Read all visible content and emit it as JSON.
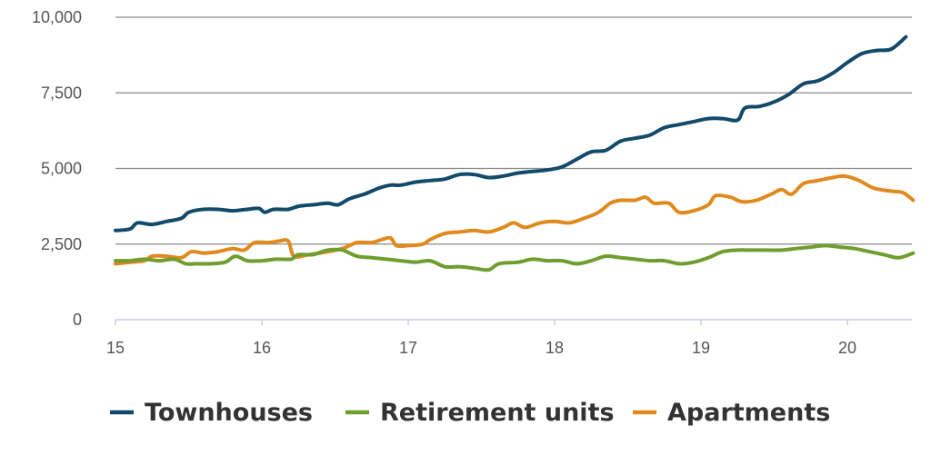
{
  "chart_data": {
    "type": "line",
    "title": "",
    "xlabel": "",
    "ylabel": "",
    "xlim": [
      15,
      20.45
    ],
    "ylim": [
      0,
      10000
    ],
    "x_ticks": [
      15,
      16,
      17,
      18,
      19,
      20
    ],
    "x_tick_labels": [
      "15",
      "16",
      "17",
      "18",
      "19",
      "20"
    ],
    "y_ticks": [
      0,
      2500,
      5000,
      7500,
      10000
    ],
    "y_tick_labels": [
      "0",
      "2,500",
      "5,000",
      "7,500",
      "10,000"
    ],
    "grid": "horizontal",
    "legend": "bottom",
    "series": [
      {
        "name": "Townhouses",
        "color": "#124a6b",
        "points": [
          [
            15.0,
            2950
          ],
          [
            15.1,
            3000
          ],
          [
            15.15,
            3200
          ],
          [
            15.25,
            3150
          ],
          [
            15.35,
            3250
          ],
          [
            15.45,
            3350
          ],
          [
            15.5,
            3550
          ],
          [
            15.6,
            3650
          ],
          [
            15.7,
            3650
          ],
          [
            15.8,
            3600
          ],
          [
            15.9,
            3650
          ],
          [
            15.98,
            3680
          ],
          [
            16.02,
            3550
          ],
          [
            16.08,
            3650
          ],
          [
            16.18,
            3650
          ],
          [
            16.25,
            3750
          ],
          [
            16.35,
            3800
          ],
          [
            16.45,
            3850
          ],
          [
            16.52,
            3800
          ],
          [
            16.6,
            4000
          ],
          [
            16.7,
            4150
          ],
          [
            16.8,
            4350
          ],
          [
            16.88,
            4450
          ],
          [
            16.95,
            4450
          ],
          [
            17.05,
            4550
          ],
          [
            17.15,
            4600
          ],
          [
            17.25,
            4650
          ],
          [
            17.35,
            4800
          ],
          [
            17.45,
            4800
          ],
          [
            17.55,
            4700
          ],
          [
            17.65,
            4750
          ],
          [
            17.75,
            4850
          ],
          [
            17.85,
            4900
          ],
          [
            17.95,
            4950
          ],
          [
            18.05,
            5050
          ],
          [
            18.15,
            5300
          ],
          [
            18.25,
            5550
          ],
          [
            18.35,
            5600
          ],
          [
            18.45,
            5900
          ],
          [
            18.55,
            6000
          ],
          [
            18.65,
            6100
          ],
          [
            18.75,
            6350
          ],
          [
            18.85,
            6450
          ],
          [
            18.95,
            6550
          ],
          [
            19.05,
            6650
          ],
          [
            19.15,
            6650
          ],
          [
            19.25,
            6600
          ],
          [
            19.3,
            7000
          ],
          [
            19.4,
            7050
          ],
          [
            19.5,
            7200
          ],
          [
            19.6,
            7450
          ],
          [
            19.7,
            7800
          ],
          [
            19.8,
            7900
          ],
          [
            19.9,
            8150
          ],
          [
            20.0,
            8500
          ],
          [
            20.1,
            8800
          ],
          [
            20.2,
            8900
          ],
          [
            20.3,
            8950
          ],
          [
            20.4,
            9350
          ]
        ]
      },
      {
        "name": "Retirement units",
        "color": "#6f9e2f",
        "points": [
          [
            15.0,
            1950
          ],
          [
            15.1,
            1950
          ],
          [
            15.2,
            2000
          ],
          [
            15.3,
            1950
          ],
          [
            15.4,
            2000
          ],
          [
            15.48,
            1850
          ],
          [
            15.55,
            1850
          ],
          [
            15.65,
            1850
          ],
          [
            15.75,
            1900
          ],
          [
            15.82,
            2100
          ],
          [
            15.9,
            1950
          ],
          [
            16.0,
            1950
          ],
          [
            16.1,
            2000
          ],
          [
            16.2,
            2000
          ],
          [
            16.25,
            2150
          ],
          [
            16.35,
            2150
          ],
          [
            16.45,
            2300
          ],
          [
            16.55,
            2300
          ],
          [
            16.65,
            2100
          ],
          [
            16.75,
            2050
          ],
          [
            16.85,
            2000
          ],
          [
            16.95,
            1950
          ],
          [
            17.05,
            1900
          ],
          [
            17.15,
            1950
          ],
          [
            17.25,
            1750
          ],
          [
            17.35,
            1750
          ],
          [
            17.45,
            1700
          ],
          [
            17.55,
            1650
          ],
          [
            17.62,
            1850
          ],
          [
            17.75,
            1900
          ],
          [
            17.85,
            2000
          ],
          [
            17.95,
            1950
          ],
          [
            18.05,
            1950
          ],
          [
            18.15,
            1850
          ],
          [
            18.25,
            1950
          ],
          [
            18.35,
            2100
          ],
          [
            18.45,
            2050
          ],
          [
            18.55,
            2000
          ],
          [
            18.65,
            1950
          ],
          [
            18.75,
            1950
          ],
          [
            18.85,
            1850
          ],
          [
            18.95,
            1900
          ],
          [
            19.05,
            2050
          ],
          [
            19.15,
            2250
          ],
          [
            19.25,
            2300
          ],
          [
            19.35,
            2300
          ],
          [
            19.45,
            2300
          ],
          [
            19.55,
            2300
          ],
          [
            19.65,
            2350
          ],
          [
            19.75,
            2400
          ],
          [
            19.85,
            2450
          ],
          [
            19.95,
            2400
          ],
          [
            20.05,
            2350
          ],
          [
            20.15,
            2250
          ],
          [
            20.25,
            2150
          ],
          [
            20.35,
            2050
          ],
          [
            20.45,
            2200
          ]
        ]
      },
      {
        "name": "Apartments",
        "color": "#e08a1e",
        "points": [
          [
            15.0,
            1850
          ],
          [
            15.1,
            1900
          ],
          [
            15.2,
            1950
          ],
          [
            15.25,
            2100
          ],
          [
            15.35,
            2100
          ],
          [
            15.45,
            2050
          ],
          [
            15.52,
            2250
          ],
          [
            15.6,
            2200
          ],
          [
            15.7,
            2250
          ],
          [
            15.8,
            2350
          ],
          [
            15.88,
            2300
          ],
          [
            15.95,
            2550
          ],
          [
            16.05,
            2550
          ],
          [
            16.12,
            2600
          ],
          [
            16.18,
            2600
          ],
          [
            16.22,
            2100
          ],
          [
            16.32,
            2150
          ],
          [
            16.45,
            2250
          ],
          [
            16.55,
            2350
          ],
          [
            16.65,
            2550
          ],
          [
            16.75,
            2550
          ],
          [
            16.82,
            2650
          ],
          [
            16.88,
            2700
          ],
          [
            16.92,
            2450
          ],
          [
            17.0,
            2450
          ],
          [
            17.1,
            2500
          ],
          [
            17.15,
            2650
          ],
          [
            17.25,
            2850
          ],
          [
            17.35,
            2900
          ],
          [
            17.45,
            2950
          ],
          [
            17.55,
            2900
          ],
          [
            17.65,
            3050
          ],
          [
            17.72,
            3200
          ],
          [
            17.8,
            3050
          ],
          [
            17.9,
            3200
          ],
          [
            18.0,
            3250
          ],
          [
            18.1,
            3200
          ],
          [
            18.2,
            3350
          ],
          [
            18.3,
            3550
          ],
          [
            18.38,
            3850
          ],
          [
            18.45,
            3950
          ],
          [
            18.55,
            3950
          ],
          [
            18.62,
            4050
          ],
          [
            18.68,
            3850
          ],
          [
            18.78,
            3850
          ],
          [
            18.85,
            3550
          ],
          [
            18.95,
            3600
          ],
          [
            19.05,
            3800
          ],
          [
            19.1,
            4100
          ],
          [
            19.2,
            4050
          ],
          [
            19.28,
            3900
          ],
          [
            19.38,
            3950
          ],
          [
            19.48,
            4150
          ],
          [
            19.55,
            4300
          ],
          [
            19.62,
            4150
          ],
          [
            19.7,
            4500
          ],
          [
            19.8,
            4600
          ],
          [
            19.9,
            4700
          ],
          [
            19.98,
            4750
          ],
          [
            20.08,
            4600
          ],
          [
            20.18,
            4350
          ],
          [
            20.3,
            4250
          ],
          [
            20.38,
            4200
          ],
          [
            20.45,
            3950
          ]
        ]
      }
    ]
  }
}
